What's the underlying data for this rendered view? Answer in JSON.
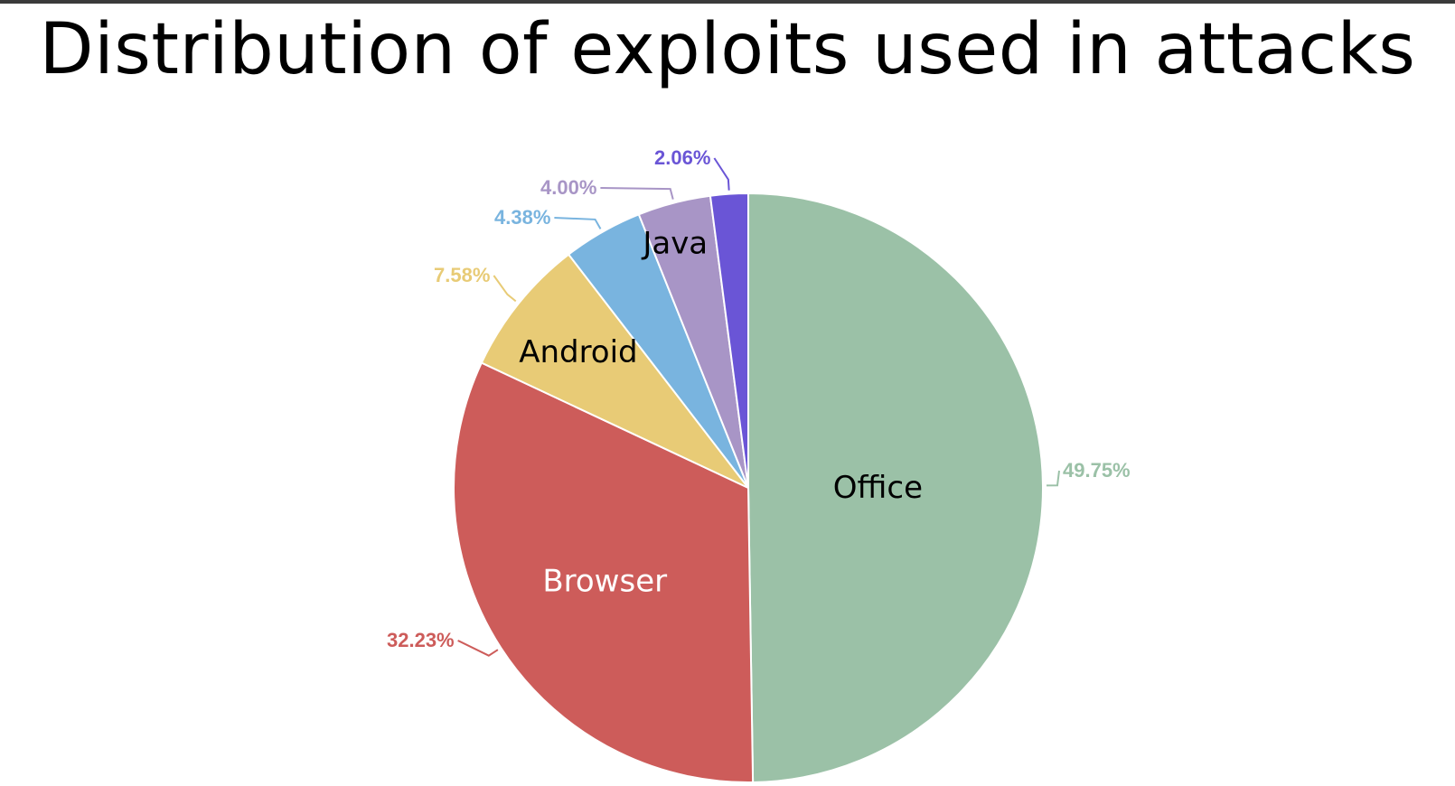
{
  "chart_data": {
    "type": "pie",
    "title": "Distribution of exploits used in attacks",
    "slices": [
      {
        "name": "Office",
        "value": 49.75,
        "percent_label": "49.75%",
        "color": "#9bc1a7",
        "label_color": "#000000"
      },
      {
        "name": "Browser",
        "value": 32.23,
        "percent_label": "32.23%",
        "color": "#cd5c5a",
        "label_color": "#ffffff"
      },
      {
        "name": "Android",
        "value": 7.58,
        "percent_label": "7.58%",
        "color": "#e8cb76",
        "label_color": "#000000"
      },
      {
        "name": "",
        "value": 4.38,
        "percent_label": "4.38%",
        "color": "#79b4df",
        "label_color": "#000000"
      },
      {
        "name": "Java",
        "value": 4.0,
        "percent_label": "4.00%",
        "color": "#a895c6",
        "label_color": "#000000"
      },
      {
        "name": "",
        "value": 2.06,
        "percent_label": "2.06%",
        "color": "#6a55d6",
        "label_color": "#000000"
      }
    ],
    "start_angle": "12 o'clock",
    "direction": "clockwise"
  }
}
